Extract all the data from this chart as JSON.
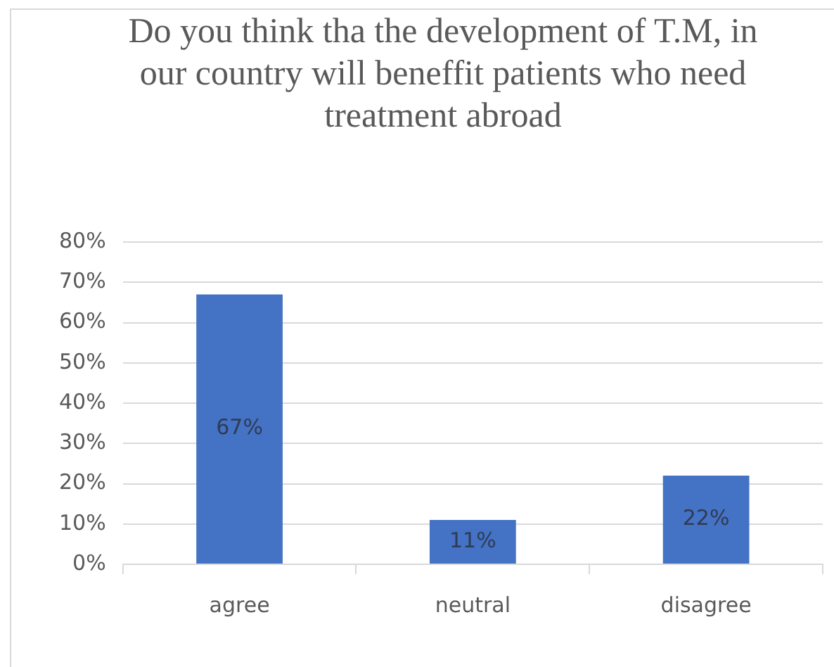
{
  "chart_data": {
    "type": "bar",
    "title": "Do you think tha the development of T.M, in our country will beneffit patients who need treatment abroad",
    "categories": [
      "agree",
      "neutral",
      "disagree"
    ],
    "values": [
      67,
      11,
      22
    ],
    "value_labels": [
      "67%",
      "11%",
      "22%"
    ],
    "color": "#4472c4",
    "ylim": [
      0,
      80
    ],
    "yticks": [
      {
        "value": 0,
        "label": "0%"
      },
      {
        "value": 10,
        "label": "10%"
      },
      {
        "value": 20,
        "label": "20%"
      },
      {
        "value": 30,
        "label": "30%"
      },
      {
        "value": 40,
        "label": "40%"
      },
      {
        "value": 50,
        "label": "50%"
      },
      {
        "value": 60,
        "label": "60%"
      },
      {
        "value": 70,
        "label": "70%"
      },
      {
        "value": 80,
        "label": "80%"
      }
    ],
    "grid": "y"
  }
}
